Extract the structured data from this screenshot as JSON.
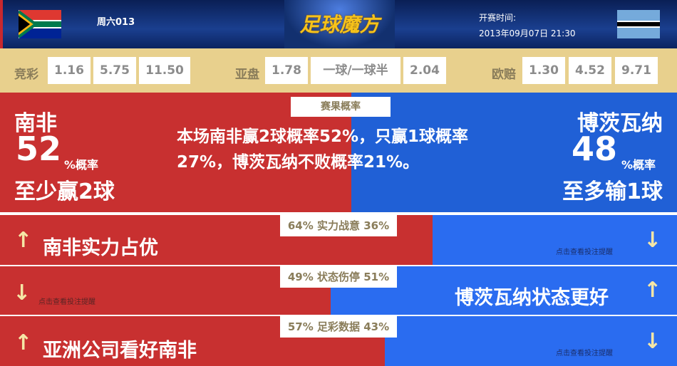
{
  "header": {
    "home_flag": "south-africa-flag",
    "away_flag": "botswana-flag",
    "match_no": "周六013",
    "logo": "足球魔方",
    "time_label": "开赛时间:",
    "time_value": "2013年09月07日 21:30"
  },
  "odds": {
    "jc_label": "竞彩",
    "jc": [
      "1.16",
      "5.75",
      "11.50"
    ],
    "yp_label": "亚盘",
    "yp": [
      "1.78",
      "一球/一球半",
      "2.04"
    ],
    "oz_label": "欧赔",
    "oz": [
      "1.30",
      "4.52",
      "9.71"
    ]
  },
  "result": {
    "tag": "赛果概率",
    "home": "南非",
    "home_pct": "52",
    "pct_suffix": "%概率",
    "home_desc": "至少赢2球",
    "away": "博茨瓦纳",
    "away_pct": "48",
    "away_desc": "至多输1球",
    "summary": "本场南非赢2球概率52%，只赢1球概率27%，博茨瓦纳不败概率21%。"
  },
  "colors": {
    "home": "#c83030",
    "away": "#2a6cf0",
    "odds_bg": "#e8d08d"
  },
  "rows": [
    {
      "label": "64% 实力战意 36%",
      "home_pct": 64,
      "home_text": "南非实力占优",
      "away_hint": "点击查看投注提醒"
    },
    {
      "label": "49% 状态伤停 51%",
      "home_pct": 49,
      "home_hint": "点击查看投注提醒",
      "away_text": "博茨瓦纳状态更好"
    },
    {
      "label": "57% 足彩数据 43%",
      "home_pct": 57,
      "home_text": "亚洲公司看好南非",
      "away_hint": "点击查看投注提醒"
    }
  ]
}
